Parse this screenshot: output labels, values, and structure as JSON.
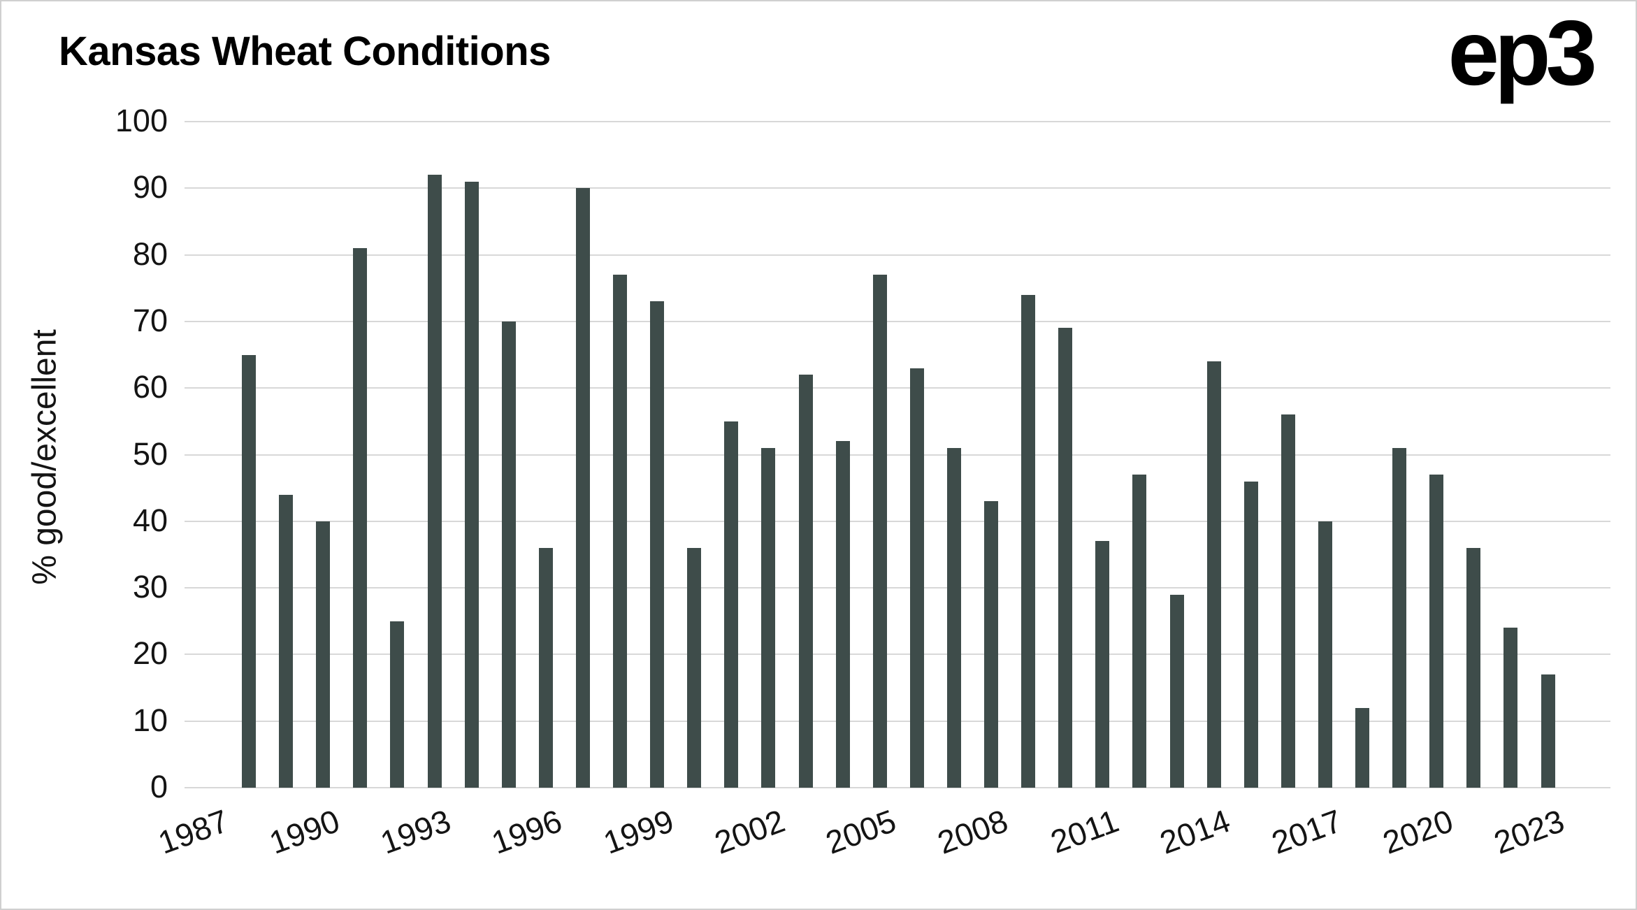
{
  "logo": "ep3",
  "colors": {
    "bar": "#3E4C4A",
    "gridline": "#d8d8d8",
    "text": "#141414",
    "title": "#000000",
    "background": "#ffffff"
  },
  "chart_data": {
    "type": "bar",
    "title": "Kansas Wheat Conditions",
    "xlabel": "",
    "ylabel": "% good/excellent",
    "ylim": [
      0,
      100
    ],
    "ytick_step": 10,
    "grid": "horizontal",
    "legend": "none",
    "xticks": [
      1987,
      1990,
      1993,
      1996,
      1999,
      2002,
      2005,
      2008,
      2011,
      2014,
      2017,
      2020,
      2023
    ],
    "categories": [
      1988,
      1989,
      1990,
      1991,
      1992,
      1993,
      1994,
      1995,
      1996,
      1997,
      1998,
      1999,
      2000,
      2001,
      2002,
      2003,
      2004,
      2005,
      2006,
      2007,
      2008,
      2009,
      2010,
      2011,
      2012,
      2013,
      2014,
      2015,
      2016,
      2017,
      2018,
      2019,
      2020,
      2021,
      2022,
      2023
    ],
    "values": [
      65,
      44,
      40,
      81,
      25,
      92,
      91,
      70,
      36,
      90,
      77,
      73,
      36,
      55,
      51,
      62,
      52,
      77,
      63,
      51,
      43,
      74,
      69,
      37,
      47,
      29,
      64,
      46,
      56,
      40,
      12,
      51,
      47,
      36,
      24,
      17
    ]
  }
}
